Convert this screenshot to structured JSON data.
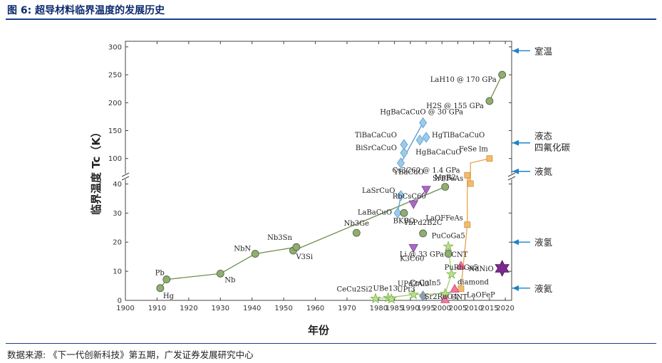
{
  "header": {
    "title": "图 6:  超导材料临界温度的发展历史"
  },
  "footer": {
    "source": "数据来源:  《下一代创新科技》第五期，广发证券发展研究中心"
  },
  "colors": {
    "green": "#8db06a",
    "blue": "#9ccbe8",
    "purple": "#a56cc1",
    "orange": "#f5bb6c",
    "lime": "#b8e089",
    "pink": "#f2789c",
    "gray": "#9a9a9a",
    "darkpurple": "#7a2a8c",
    "header": "#0c2a6e",
    "rule": "#1a3e8c"
  },
  "chart_data": {
    "type": "scatter",
    "xlabel": "年份",
    "ylabel": "临界温度 Tc（K）",
    "xlim": [
      1900,
      2022
    ],
    "ylim_lower": [
      0,
      45
    ],
    "ylim_upper": [
      55,
      310
    ],
    "x_ticks": [
      "1900",
      "1920",
      "1940",
      "1960",
      "1980",
      "2000",
      "2020"
    ],
    "x_ticks_minor": [
      "1910",
      "1930",
      "1950",
      "1970",
      "1990",
      "2010"
    ],
    "x_tick_vals": [
      1900,
      1920,
      1940,
      1960,
      1980,
      2000,
      2020
    ],
    "x_tick_labels": [
      "1900",
      "1920",
      "1940",
      "1960",
      "1980",
      "2000",
      "2020"
    ],
    "x_tick_vals_full": [
      1900,
      1910,
      1920,
      1930,
      1940,
      1950,
      1960,
      1970,
      1980,
      1985,
      1990,
      1995,
      2000,
      2005,
      2010,
      2015,
      2020
    ],
    "x_tick_labels_full": [
      "1900",
      "1910",
      "1920",
      "1930",
      "1940",
      "1950",
      "1960",
      "1970",
      "1980",
      "1985",
      "1990",
      "1995",
      "2000",
      "2005",
      "2010",
      "2015",
      "2020"
    ],
    "y_ticks_lower": [
      "0",
      "10",
      "20",
      "30",
      "40"
    ],
    "y_tick_vals_lower": [
      0,
      10,
      20,
      30,
      40
    ],
    "y_ticks_upper": [
      "100",
      "150",
      "200",
      "250",
      "300"
    ],
    "y_tick_vals_upper": [
      100,
      150,
      200,
      250,
      300
    ],
    "reference_lines": [
      {
        "label": "室温",
        "y": 293
      },
      {
        "label": "液态",
        "label2": "四氟化碳",
        "y": 128
      },
      {
        "label": "液氮",
        "y": 77
      },
      {
        "label": "液氢",
        "y": 20
      },
      {
        "label": "液氦",
        "y": 4.2
      }
    ],
    "series": [
      {
        "group": "conventional",
        "marker": "circle",
        "color": "#8db06a",
        "points": [
          {
            "t": "Hg",
            "x": 1911,
            "y": 4.2
          },
          {
            "t": "Pb",
            "x": 1913,
            "y": 7.2
          },
          {
            "t": "Nb",
            "x": 1930,
            "y": 9.2
          },
          {
            "t": "NbN",
            "x": 1941,
            "y": 16
          },
          {
            "t": "V3Si",
            "x": 1953,
            "y": 17.1
          },
          {
            "t": "Nb3Sn",
            "x": 1954,
            "y": 18.3
          },
          {
            "t": "Nb3Ge",
            "x": 1973,
            "y": 23.2
          },
          {
            "t": "MgB2",
            "x": 2001,
            "y": 39
          },
          {
            "t": "YbPd2B2C",
            "x": 1994,
            "y": 23
          },
          {
            "t": "Li @ 33 GPa",
            "x": 2002,
            "y": 16
          },
          {
            "t": "H2S @ 155 GPa",
            "x": 2015,
            "y": 203
          },
          {
            "t": "LaH10 @ 170 GPa",
            "x": 2019,
            "y": 250
          }
        ]
      },
      {
        "group": "cuprates",
        "marker": "diamond",
        "color": "#9ccbe8",
        "points": [
          {
            "t": "LaBaCuO",
            "x": 1986,
            "y": 30
          },
          {
            "t": "LaSrCuO",
            "x": 1987,
            "y": 36
          },
          {
            "t": "YBaCuO",
            "x": 1987,
            "y": 92
          },
          {
            "t": "BiSrCaCuO",
            "x": 1988,
            "y": 110
          },
          {
            "t": "TlBaCaCuO",
            "x": 1988,
            "y": 125
          },
          {
            "t": "HgBaCaCuO",
            "x": 1993,
            "y": 133
          },
          {
            "t": "HgTlBaCaCuO",
            "x": 1995,
            "y": 138
          },
          {
            "t": "HgBaCaCuO @ 30 GPa",
            "x": 1994,
            "y": 164
          }
        ]
      },
      {
        "group": "bkbo",
        "marker": "circle",
        "color": "#8db06a",
        "points": [
          {
            "t": "BKBO",
            "x": 1988,
            "y": 30
          }
        ]
      },
      {
        "group": "fullerenes",
        "marker": "triangle-down",
        "color": "#a56cc1",
        "points": [
          {
            "t": "K3C60",
            "x": 1991,
            "y": 18
          },
          {
            "t": "RbCsC60",
            "x": 1991,
            "y": 33
          },
          {
            "t": "Cs3C60 @ 1.4 GPa",
            "x": 1995,
            "y": 38
          }
        ]
      },
      {
        "group": "iron",
        "marker": "square",
        "color": "#f5bb6c",
        "points": [
          {
            "t": "LaOFeP",
            "x": 2006,
            "y": 4
          },
          {
            "t": "LaOFFeAs",
            "x": 2008,
            "y": 26
          },
          {
            "t": "",
            "x": 2008,
            "y": 43
          },
          {
            "t": "SrFFeAs",
            "x": 2009,
            "y": 55
          },
          {
            "t": "FeSe  lm",
            "x": 2015,
            "y": 100
          }
        ]
      },
      {
        "group": "heavy-fermion",
        "marker": "star",
        "color": "#b8e089",
        "points": [
          {
            "t": "CeCu2Si2",
            "x": 1979,
            "y": 0.6
          },
          {
            "t": "UBe13",
            "x": 1983,
            "y": 0.9
          },
          {
            "t": "UPt3",
            "x": 1984,
            "y": 0.5
          },
          {
            "t": "UPd2Al3",
            "x": 1991,
            "y": 2
          },
          {
            "t": "CeCoIn5",
            "x": 2001,
            "y": 2.3
          },
          {
            "t": "PuRhGa5",
            "x": 2003,
            "y": 9
          },
          {
            "t": "PuCoGa5",
            "x": 2002,
            "y": 18.5
          }
        ]
      },
      {
        "group": "sr2ruo4",
        "marker": "diamond",
        "color": "#9a9a9a",
        "points": [
          {
            "t": "Sr2RuO4",
            "x": 1994,
            "y": 1.5
          }
        ]
      },
      {
        "group": "carbon",
        "marker": "triangle-up",
        "color": "#f2789c",
        "points": [
          {
            "t": "CNT",
            "x": 2001,
            "y": 0.4
          },
          {
            "t": "diamond",
            "x": 2004,
            "y": 4
          },
          {
            "t": "CNT",
            "x": 2006,
            "y": 12
          }
        ]
      },
      {
        "group": "nickelate",
        "marker": "star6",
        "color": "#7a2a8c",
        "points": [
          {
            "t": "NdNiO",
            "x": 2019,
            "y": 11
          }
        ]
      }
    ]
  }
}
